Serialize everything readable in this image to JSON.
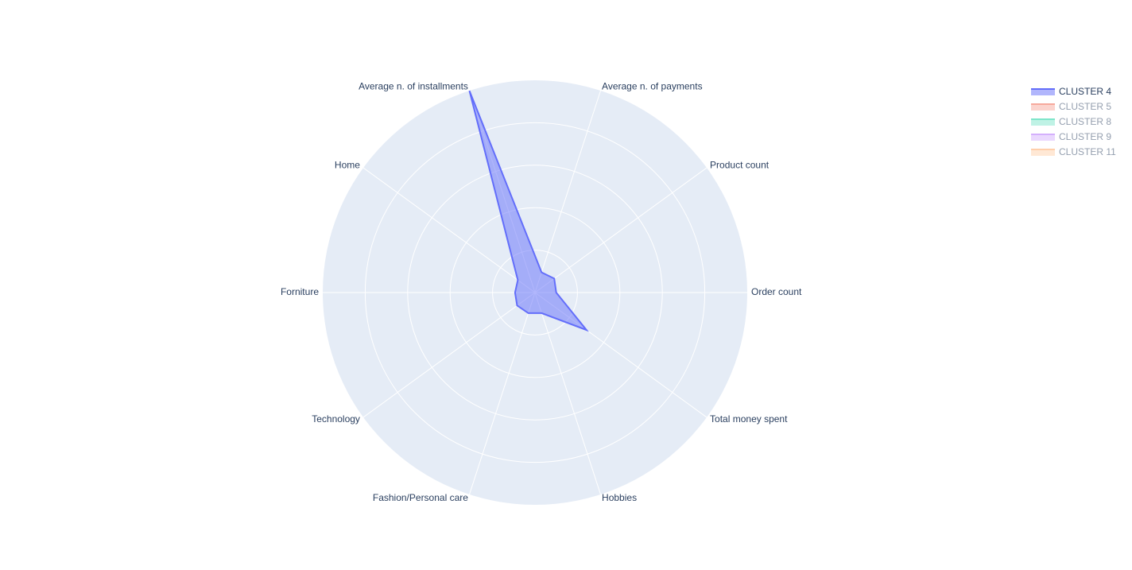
{
  "chart_data": {
    "type": "radar",
    "categories": [
      "Order count",
      "Product count",
      "Average n. of payments",
      "Average n. of installments",
      "Home",
      "Forniture",
      "Technology",
      "Fashion/Personal care",
      "Hobbies",
      "Total money spent"
    ],
    "rlim": [
      0,
      5
    ],
    "rticks": [
      1,
      2,
      3,
      4
    ],
    "grid": true,
    "legend": "top-right",
    "series": [
      {
        "name": "CLUSTER 4",
        "color": "#636efa",
        "visible": true,
        "values": [
          0.5,
          0.56,
          0.5,
          5.0,
          0.5,
          0.47,
          0.52,
          0.51,
          0.51,
          1.5
        ]
      },
      {
        "name": "CLUSTER 5",
        "color": "#EF553B",
        "visible": false
      },
      {
        "name": "CLUSTER 8",
        "color": "#00cc96",
        "visible": false
      },
      {
        "name": "CLUSTER 9",
        "color": "#ab63fa",
        "visible": false
      },
      {
        "name": "CLUSTER 11",
        "color": "#FFA15A",
        "visible": false
      }
    ]
  }
}
